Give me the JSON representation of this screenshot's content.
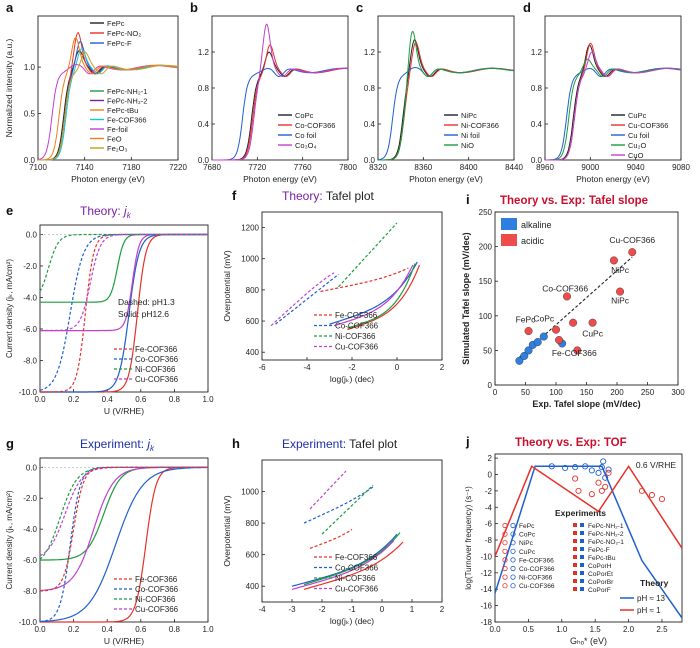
{
  "figure": {
    "description": "Multi-panel XANES / Tafel / TOF figure"
  },
  "colors": {
    "black": "#222222",
    "red": "#e8312a",
    "blue": "#1f5fcf",
    "green": "#1b9e3e",
    "magenta": "#c23fd0",
    "purple": "#7a1fa2",
    "darkblue": "#1c2fa8",
    "darkred": "#c8102e",
    "orange": "#f07f1a",
    "cyan": "#1cc4d8",
    "olive": "#c8a020",
    "alkaline": "#2f7fe0",
    "acidic": "#ee4b4b"
  },
  "chart_data": [
    {
      "panel": "a",
      "type": "line",
      "xlabel": "Photon energy (eV)",
      "ylabel": "Normalized intensity (a.u.)",
      "xlim": [
        7100,
        7220
      ],
      "ylim": [
        0,
        1.55
      ],
      "xticks": [
        "7100",
        "7140",
        "7180",
        "7220"
      ],
      "yticks": [
        "0.0",
        "0.5",
        "1.0"
      ],
      "legend1": [
        "FePc",
        "FePc-NO₂",
        "FePc-F"
      ],
      "legend2": [
        "FePc-NH₂-1",
        "FePc-NH₂-2",
        "FePc-tBu",
        "Fe-COF366",
        "Fe-foil",
        "FeO",
        "Fe₂O₃"
      ],
      "series": [
        {
          "name": "FePc",
          "color": "#222222",
          "edge": 7122,
          "peak": 1.18,
          "peakE": 7135
        },
        {
          "name": "FePc-NO₂",
          "color": "#e8312a",
          "edge": 7123,
          "peak": 1.38,
          "peakE": 7134
        },
        {
          "name": "FePc-F",
          "color": "#1f5fcf",
          "edge": 7123,
          "peak": 1.28,
          "peakE": 7136
        },
        {
          "name": "Fe-COF366",
          "color": "#1cc4d8",
          "edge": 7124,
          "peak": 1.2,
          "peakE": 7137
        },
        {
          "name": "Fe-foil",
          "color": "#c23fd0",
          "edge": 7112,
          "peak": 1.02,
          "peakE": 7130
        },
        {
          "name": "FeO",
          "color": "#f07f1a",
          "edge": 7118,
          "peak": 1.32,
          "peakE": 7132
        },
        {
          "name": "Fe2O3",
          "color": "#c8a020",
          "edge": 7123,
          "peak": 1.16,
          "peakE": 7140
        }
      ]
    },
    {
      "panel": "b",
      "type": "line",
      "xlabel": "Photon energy (eV)",
      "xlim": [
        7680,
        7800
      ],
      "ylim": [
        0,
        1.6
      ],
      "xticks": [
        "7680",
        "7720",
        "7760",
        "7800"
      ],
      "yticks": [
        "0.0",
        "0.4",
        "0.8",
        "1.2"
      ],
      "legend": [
        "CoPc",
        "Co-COF366",
        "Co foil",
        "Co₃O₄"
      ],
      "series": [
        {
          "name": "CoPc",
          "color": "#222222",
          "edge": 7715,
          "peak": 1.2,
          "peakE": 7730
        },
        {
          "name": "Co-COF366",
          "color": "#e8312a",
          "edge": 7716,
          "peak": 1.28,
          "peakE": 7731
        },
        {
          "name": "Co foil",
          "color": "#1f5fcf",
          "edge": 7707,
          "peak": 1.0,
          "peakE": 7725
        },
        {
          "name": "Co3O4",
          "color": "#c23fd0",
          "edge": 7717,
          "peak": 1.52,
          "peakE": 7728
        }
      ]
    },
    {
      "panel": "c",
      "type": "line",
      "xlabel": "Photon energy (eV)",
      "xlim": [
        8320,
        8440
      ],
      "ylim": [
        0,
        1.6
      ],
      "xticks": [
        "8320",
        "8360",
        "8400",
        "8440"
      ],
      "yticks": [
        "0.0",
        "0.4",
        "0.8",
        "1.2"
      ],
      "legend": [
        "NiPc",
        "Ni-COF366",
        "Ni foil",
        "NiO"
      ],
      "series": [
        {
          "name": "NiPc",
          "color": "#222222",
          "edge": 8342,
          "peak": 1.35,
          "peakE": 8352
        },
        {
          "name": "Ni-COF366",
          "color": "#e8312a",
          "edge": 8343,
          "peak": 1.32,
          "peakE": 8353
        },
        {
          "name": "Ni foil",
          "color": "#1f5fcf",
          "edge": 8333,
          "peak": 1.02,
          "peakE": 8350
        },
        {
          "name": "NiO",
          "color": "#1b9e3e",
          "edge": 8343,
          "peak": 1.48,
          "peakE": 8350
        }
      ]
    },
    {
      "panel": "d",
      "type": "line",
      "xlabel": "Photon energy (eV)",
      "xlim": [
        8960,
        9080
      ],
      "ylim": [
        0,
        1.6
      ],
      "xticks": [
        "8960",
        "9000",
        "9040",
        "9080"
      ],
      "yticks": [
        "0.0",
        "0.4",
        "0.8",
        "1.2"
      ],
      "legend": [
        "CuPc",
        "Cu-COF366",
        "Cu foil",
        "Cu₂O",
        "CuO"
      ],
      "series": [
        {
          "name": "CuPc",
          "color": "#222222",
          "edge": 8985,
          "peak": 1.28,
          "peakE": 8999
        },
        {
          "name": "Cu-COF366",
          "color": "#e8312a",
          "edge": 8986,
          "peak": 1.3,
          "peakE": 9000
        },
        {
          "name": "Cu foil",
          "color": "#1f5fcf",
          "edge": 8979,
          "peak": 1.0,
          "peakE": 8995
        },
        {
          "name": "Cu2O",
          "color": "#1b9e3e",
          "edge": 8981,
          "peak": 1.12,
          "peakE": 8997
        },
        {
          "name": "CuO",
          "color": "#c23fd0",
          "edge": 8986,
          "peak": 1.2,
          "peakE": 9001
        }
      ]
    },
    {
      "panel": "e",
      "type": "line",
      "title": "Theory: ",
      "title_sub": "j",
      "title_subk": "k",
      "xlabel": "U (V/RHE)",
      "ylabel": "Current density (jₖ, mA/cm²)",
      "xlim": [
        0,
        1.0
      ],
      "ylim": [
        -10,
        0.6
      ],
      "xticks": [
        "0.0",
        "0.2",
        "0.4",
        "0.6",
        "0.8",
        "1.0"
      ],
      "yticks": [
        "0.0",
        "-2.0",
        "-4.0",
        "-6.0",
        "-8.0",
        "-10.0"
      ],
      "note1": "Dashed: pH1.3",
      "note2": "Solid: pH12.6",
      "legend": [
        "Fe-COF366",
        "Co-COF366",
        "Ni-COF366",
        "Cu-COF366"
      ]
    },
    {
      "panel": "f",
      "type": "line",
      "title": "Theory: ",
      "title_rest": "Tafel plot",
      "xlabel": "log(jₖ) (dec)",
      "ylabel": "Overpotential (mV)",
      "xlim": [
        -6,
        2
      ],
      "ylim": [
        350,
        1300
      ],
      "xticks": [
        "-6",
        "-4",
        "-2",
        "0",
        "2"
      ],
      "yticks": [
        "400",
        "600",
        "800",
        "1000",
        "1200"
      ],
      "legend": [
        "Fe-COF366",
        "Co-COF366",
        "Ni-COF366",
        "Cu-COF366"
      ]
    },
    {
      "panel": "i",
      "type": "scatter",
      "title": "Theory vs. Exp: Tafel slope",
      "xlabel": "Exp. Tafel slope (mV/dec)",
      "ylabel": "Simulated Tafel slope (mV/dec)",
      "xlim": [
        0,
        300
      ],
      "ylim": [
        0,
        250
      ],
      "xticks": [
        "0",
        "50",
        "100",
        "150",
        "200",
        "250",
        "300"
      ],
      "yticks": [
        "0",
        "50",
        "100",
        "150",
        "200",
        "250"
      ],
      "legend": [
        "alkaline",
        "acidic"
      ],
      "labels": [
        "Cu-COF366",
        "NiPc",
        "Co-COF366",
        "NiPc",
        "FePc",
        "CoPc",
        "CuPc",
        "Fe-COF366"
      ]
    },
    {
      "panel": "g",
      "type": "line",
      "title": "Experiment: ",
      "title_sub": "j",
      "title_subk": "k",
      "xlabel": "U (V/RHE)",
      "ylabel": "Current density (jₖ, mA/cm²)",
      "xlim": [
        0,
        1.0
      ],
      "ylim": [
        -10,
        0.6
      ],
      "xticks": [
        "0.0",
        "0.2",
        "0.4",
        "0.6",
        "0.8",
        "1.0"
      ],
      "yticks": [
        "0.0",
        "-2.0",
        "-4.0",
        "-6.0",
        "-8.0",
        "-10.0"
      ],
      "legend": [
        "Fe-COF366",
        "Co-COF366",
        "Ni-COF366",
        "Cu-COF366"
      ]
    },
    {
      "panel": "h",
      "type": "line",
      "title": "Experiment: ",
      "title_rest": "Tafel plot",
      "xlabel": "log(jₖ) (dec)",
      "ylabel": "Overpotential (mV)",
      "xlim": [
        -4,
        2
      ],
      "ylim": [
        300,
        1200
      ],
      "xticks": [
        "-4",
        "-3",
        "-2",
        "-1",
        "0",
        "1",
        "2"
      ],
      "yticks": [
        "400",
        "600",
        "800",
        "1000"
      ],
      "legend": [
        "Fe-COF366",
        "Co-COF366",
        "Ni-COF366",
        "Cu-COF366"
      ]
    },
    {
      "panel": "j",
      "type": "scatter",
      "title": "Theory vs. Exp: TOF",
      "xlabel": "Gₕₒ* (eV)",
      "ylabel": "log(Turnover frequency) (s⁻¹)",
      "xlim": [
        0,
        2.8
      ],
      "ylim": [
        -18,
        2.5
      ],
      "xticks": [
        "0.0",
        "0.5",
        "1.0",
        "1.5",
        "2.0",
        "2.5"
      ],
      "yticks": [
        "2",
        "0",
        "-2",
        "-4",
        "-6",
        "-8",
        "-10",
        "-12",
        "-14",
        "-16",
        "-18"
      ],
      "note": "0.6 V/RHE",
      "exp_title": "Experiments",
      "exp_col1": [
        "FePc",
        "CoPc",
        "NiPc",
        "CuPc",
        "Fe-COF366",
        "Co-COF366",
        "Ni-COF366",
        "Cu-COF366"
      ],
      "exp_col2": [
        "FePc-NH₂-1",
        "FePc-NH₂-2",
        "FePc-NO₂-1",
        "FePc-F",
        "FePc-tBu",
        "CoPorH",
        "CoPorEt",
        "CoPorBr",
        "CoPorF"
      ],
      "theory_title": "Theory",
      "theory_items": [
        "pH ≈ 13",
        "pH ≈ 1"
      ]
    }
  ]
}
